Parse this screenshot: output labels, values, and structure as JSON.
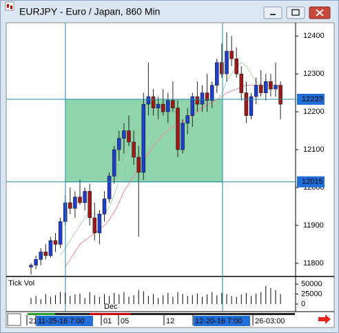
{
  "window": {
    "title": "EURJPY - Euro / Japan, 860 Min"
  },
  "chart": {
    "type": "candlestick",
    "ylim": [
      11767,
      12435
    ],
    "yticks": [
      11800,
      11900,
      12000,
      12100,
      12200,
      12300,
      12400
    ],
    "crosshair_prices": [
      12233,
      12015
    ],
    "candles": [
      [
        11790,
        11800,
        11770,
        11795
      ],
      [
        11795,
        11820,
        11785,
        11810
      ],
      [
        11810,
        11840,
        11795,
        11830
      ],
      [
        11830,
        11850,
        11810,
        11820
      ],
      [
        11820,
        11870,
        11815,
        11860
      ],
      [
        11860,
        11880,
        11830,
        11850
      ],
      [
        11850,
        11920,
        11840,
        11910
      ],
      [
        11910,
        11980,
        11900,
        11960
      ],
      [
        11960,
        12000,
        11930,
        11945
      ],
      [
        11945,
        11990,
        11920,
        11975
      ],
      [
        11975,
        12020,
        11955,
        11960
      ],
      [
        11960,
        12000,
        11940,
        11990
      ],
      [
        11990,
        12010,
        11900,
        11920
      ],
      [
        11920,
        11960,
        11860,
        11880
      ],
      [
        11880,
        11940,
        11850,
        11930
      ],
      [
        11930,
        11990,
        11910,
        11970
      ],
      [
        11970,
        12040,
        11960,
        12030
      ],
      [
        12030,
        12110,
        12010,
        12100
      ],
      [
        12100,
        12150,
        12070,
        12130
      ],
      [
        12130,
        12170,
        12090,
        12150
      ],
      [
        12150,
        12190,
        12110,
        12120
      ],
      [
        12120,
        12150,
        12060,
        12080
      ],
      [
        12080,
        12110,
        11870,
        12040
      ],
      [
        12040,
        12250,
        12020,
        12220
      ],
      [
        12220,
        12330,
        12190,
        12240
      ],
      [
        12240,
        12260,
        12190,
        12210
      ],
      [
        12210,
        12240,
        12180,
        12220
      ],
      [
        12220,
        12260,
        12190,
        12200
      ],
      [
        12200,
        12250,
        12170,
        12230
      ],
      [
        12230,
        12280,
        12200,
        12210
      ],
      [
        12210,
        12230,
        12080,
        12100
      ],
      [
        12100,
        12180,
        12090,
        12170
      ],
      [
        12170,
        12210,
        12140,
        12190
      ],
      [
        12190,
        12250,
        12160,
        12240
      ],
      [
        12240,
        12280,
        12200,
        12220
      ],
      [
        12220,
        12270,
        12200,
        12250
      ],
      [
        12250,
        12300,
        12200,
        12230
      ],
      [
        12230,
        12280,
        12210,
        12270
      ],
      [
        12270,
        12340,
        12250,
        12330
      ],
      [
        12330,
        12380,
        12290,
        12300
      ],
      [
        12300,
        12410,
        12280,
        12360
      ],
      [
        12360,
        12400,
        12320,
        12340
      ],
      [
        12340,
        12370,
        12290,
        12300
      ],
      [
        12300,
        12320,
        12230,
        12250
      ],
      [
        12250,
        12280,
        12170,
        12190
      ],
      [
        12190,
        12250,
        12180,
        12240
      ],
      [
        12240,
        12290,
        12220,
        12270
      ],
      [
        12270,
        12310,
        12240,
        12250
      ],
      [
        12250,
        12300,
        12230,
        12280
      ],
      [
        12280,
        12300,
        12240,
        12260
      ],
      [
        12260,
        12330,
        12240,
        12270
      ],
      [
        12270,
        12280,
        12180,
        12220
      ]
    ],
    "ma_fast": [
      null,
      null,
      null,
      null,
      null,
      null,
      11820,
      11840,
      11860,
      11880,
      11900,
      11920,
      11935,
      11930,
      11925,
      11930,
      11950,
      11980,
      12020,
      12060,
      12090,
      12110,
      12110,
      12100,
      12120,
      12150,
      12180,
      12200,
      12210,
      12215,
      12220,
      12210,
      12190,
      12180,
      12190,
      12200,
      12210,
      12220,
      12230,
      12250,
      12280,
      12300,
      12320,
      12330,
      12320,
      12300,
      12280,
      12270,
      12260,
      12260,
      12265,
      12265
    ],
    "ma_slow": [
      null,
      null,
      null,
      null,
      null,
      null,
      null,
      11790,
      11810,
      11830,
      11850,
      11860,
      11870,
      11880,
      11890,
      11900,
      11915,
      11935,
      11960,
      11990,
      12010,
      12030,
      12050,
      12070,
      12090,
      12110,
      12125,
      12140,
      12150,
      12160,
      12170,
      12175,
      12180,
      12190,
      12200,
      12210,
      12220,
      12225,
      12230,
      12240,
      12250,
      12255,
      12260,
      12265,
      12270,
      12270,
      12270,
      12270,
      12270,
      12270,
      12270,
      12270
    ],
    "volume": {
      "label": "Tick Vol",
      "ylim": [
        0,
        50000
      ],
      "yticks": [
        50000,
        25000,
        0
      ],
      "values": [
        15000,
        20000,
        12000,
        25000,
        18000,
        22000,
        30000,
        28000,
        20000,
        24000,
        26000,
        15000,
        30000,
        22000,
        18000,
        25000,
        20000,
        28000,
        24000,
        30000,
        18000,
        22000,
        35000,
        32000,
        20000,
        25000,
        15000,
        22000,
        28000,
        18000,
        30000,
        25000,
        20000,
        22000,
        26000,
        18000,
        24000,
        30000,
        22000,
        28000,
        25000,
        20000,
        18000,
        24000,
        28000,
        20000,
        26000,
        30000,
        45000,
        40000,
        35000,
        25000
      ]
    },
    "time_axis": {
      "month": "Dec",
      "labels": [
        "21",
        "11-25-16 7:00",
        "01",
        "05",
        "12",
        "12-20-16 7:00",
        "26-03:00"
      ]
    }
  }
}
